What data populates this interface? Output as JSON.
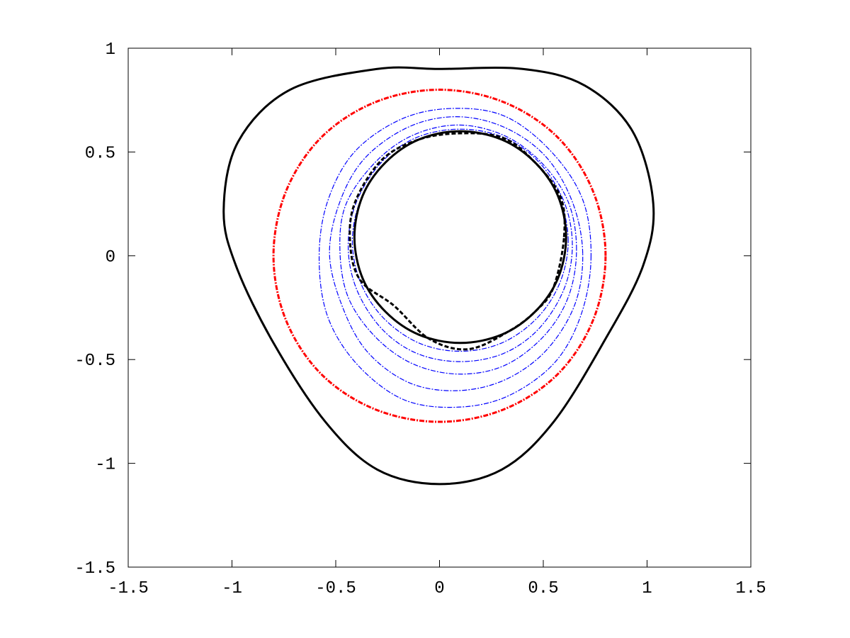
{
  "chart_data": {
    "type": "line",
    "xlim": [
      -1.5,
      1.5
    ],
    "ylim": [
      -1.5,
      1
    ],
    "xticks": [
      -1.5,
      -1,
      -0.5,
      0,
      0.5,
      1,
      1.5
    ],
    "yticks": [
      -1.5,
      -1,
      -0.5,
      0,
      0.5,
      1
    ],
    "series": [
      {
        "color": "#000000",
        "linestyle": "solid",
        "x": [
          -0.3,
          0,
          0.4,
          0.7,
          0.93,
          1.03,
          0.98,
          0.8,
          0.55,
          0.3,
          0,
          -0.3,
          -0.55,
          -0.8,
          -0.98,
          -1.04,
          -0.97,
          -0.72,
          -0.3
        ],
        "y": [
          0.9,
          0.9,
          0.9,
          0.82,
          0.6,
          0.25,
          -0.05,
          -0.4,
          -0.8,
          -1.03,
          -1.1,
          -1.03,
          -0.8,
          -0.42,
          -0.05,
          0.22,
          0.55,
          0.8,
          0.9
        ]
      },
      {
        "color": "#ff0000",
        "linestyle": "dashdot",
        "x": [
          0.8,
          0.74,
          0.57,
          0.31,
          0,
          -0.31,
          -0.57,
          -0.74,
          -0.8,
          -0.74,
          -0.57,
          -0.31,
          0,
          0.31,
          0.57,
          0.74,
          0.8
        ],
        "y": [
          0,
          0.31,
          0.57,
          0.74,
          0.8,
          0.74,
          0.57,
          0.31,
          0,
          -0.31,
          -0.57,
          -0.74,
          -0.8,
          -0.74,
          -0.57,
          -0.31,
          0
        ]
      },
      {
        "color": "#0000ff",
        "linestyle": "dashdot",
        "x": [
          0.73,
          0.69,
          0.54,
          0.32,
          0.07,
          -0.18,
          -0.41,
          -0.54,
          -0.58,
          -0.54,
          -0.4,
          -0.18,
          0.07,
          0.32,
          0.55,
          0.68,
          0.73
        ],
        "y": [
          -0.01,
          0.27,
          0.5,
          0.67,
          0.71,
          0.66,
          0.5,
          0.26,
          -0.01,
          -0.29,
          -0.52,
          -0.69,
          -0.73,
          -0.68,
          -0.52,
          -0.29,
          -0.01
        ]
      },
      {
        "color": "#0000ff",
        "linestyle": "dashdot",
        "x": [
          0.69,
          0.64,
          0.51,
          0.31,
          0.08,
          -0.15,
          -0.36,
          -0.48,
          -0.53,
          -0.47,
          -0.35,
          -0.15,
          0.08,
          0.31,
          0.51,
          0.65,
          0.69
        ],
        "y": [
          0.01,
          0.26,
          0.48,
          0.62,
          0.67,
          0.62,
          0.47,
          0.26,
          0.01,
          -0.24,
          -0.46,
          -0.61,
          -0.65,
          -0.6,
          -0.46,
          -0.24,
          0.01
        ]
      },
      {
        "color": "#0000ff",
        "linestyle": "dashdot",
        "x": [
          0.66,
          0.62,
          0.49,
          0.31,
          0.09,
          -0.13,
          -0.31,
          -0.45,
          -0.48,
          -0.44,
          -0.31,
          -0.13,
          0.09,
          0.31,
          0.5,
          0.62,
          0.66
        ],
        "y": [
          0.03,
          0.26,
          0.45,
          0.58,
          0.63,
          0.58,
          0.45,
          0.25,
          0.03,
          -0.2,
          -0.39,
          -0.52,
          -0.57,
          -0.53,
          -0.39,
          -0.2,
          0.03
        ]
      },
      {
        "color": "#0000ff",
        "linestyle": "dashdot",
        "x": [
          0.64,
          0.6,
          0.48,
          0.31,
          0.1,
          -0.11,
          -0.28,
          -0.4,
          -0.44,
          -0.4,
          -0.28,
          -0.11,
          0.1,
          0.31,
          0.48,
          0.6,
          0.64
        ],
        "y": [
          0.05,
          0.26,
          0.45,
          0.57,
          0.61,
          0.57,
          0.45,
          0.26,
          0.05,
          -0.16,
          -0.35,
          -0.47,
          -0.51,
          -0.47,
          -0.35,
          -0.16,
          0.05
        ]
      },
      {
        "color": "#0000ff",
        "linestyle": "dashdot",
        "x": [
          0.62,
          0.58,
          0.47,
          0.3,
          0.1,
          -0.1,
          -0.27,
          -0.38,
          -0.42,
          -0.38,
          -0.27,
          -0.1,
          0.1,
          0.3,
          0.47,
          0.58,
          0.62
        ],
        "y": [
          0.07,
          0.27,
          0.44,
          0.56,
          0.6,
          0.56,
          0.44,
          0.27,
          0.07,
          -0.13,
          -0.3,
          -0.42,
          -0.46,
          -0.42,
          -0.3,
          -0.13,
          0.07
        ]
      },
      {
        "color": "#000000",
        "linestyle": "dashed",
        "x": [
          0.6,
          0.58,
          0.44,
          0.3,
          0.1,
          -0.1,
          -0.28,
          -0.41,
          -0.43,
          -0.38,
          -0.22,
          -0.05,
          0.14,
          0.34,
          0.47,
          0.55,
          0.6
        ],
        "y": [
          0.09,
          0.29,
          0.47,
          0.57,
          0.59,
          0.56,
          0.46,
          0.25,
          0.05,
          -0.12,
          -0.24,
          -0.4,
          -0.45,
          -0.36,
          -0.26,
          -0.15,
          0.09
        ]
      },
      {
        "color": "#000000",
        "linestyle": "solid",
        "x": [
          0.61,
          0.57,
          0.46,
          0.3,
          0.1,
          -0.1,
          -0.26,
          -0.37,
          -0.41,
          -0.37,
          -0.26,
          -0.1,
          0.1,
          0.3,
          0.46,
          0.57,
          0.61
        ],
        "y": [
          0.09,
          0.29,
          0.45,
          0.56,
          0.6,
          0.56,
          0.45,
          0.29,
          0.09,
          -0.11,
          -0.27,
          -0.38,
          -0.42,
          -0.38,
          -0.27,
          -0.11,
          0.09
        ]
      }
    ]
  }
}
